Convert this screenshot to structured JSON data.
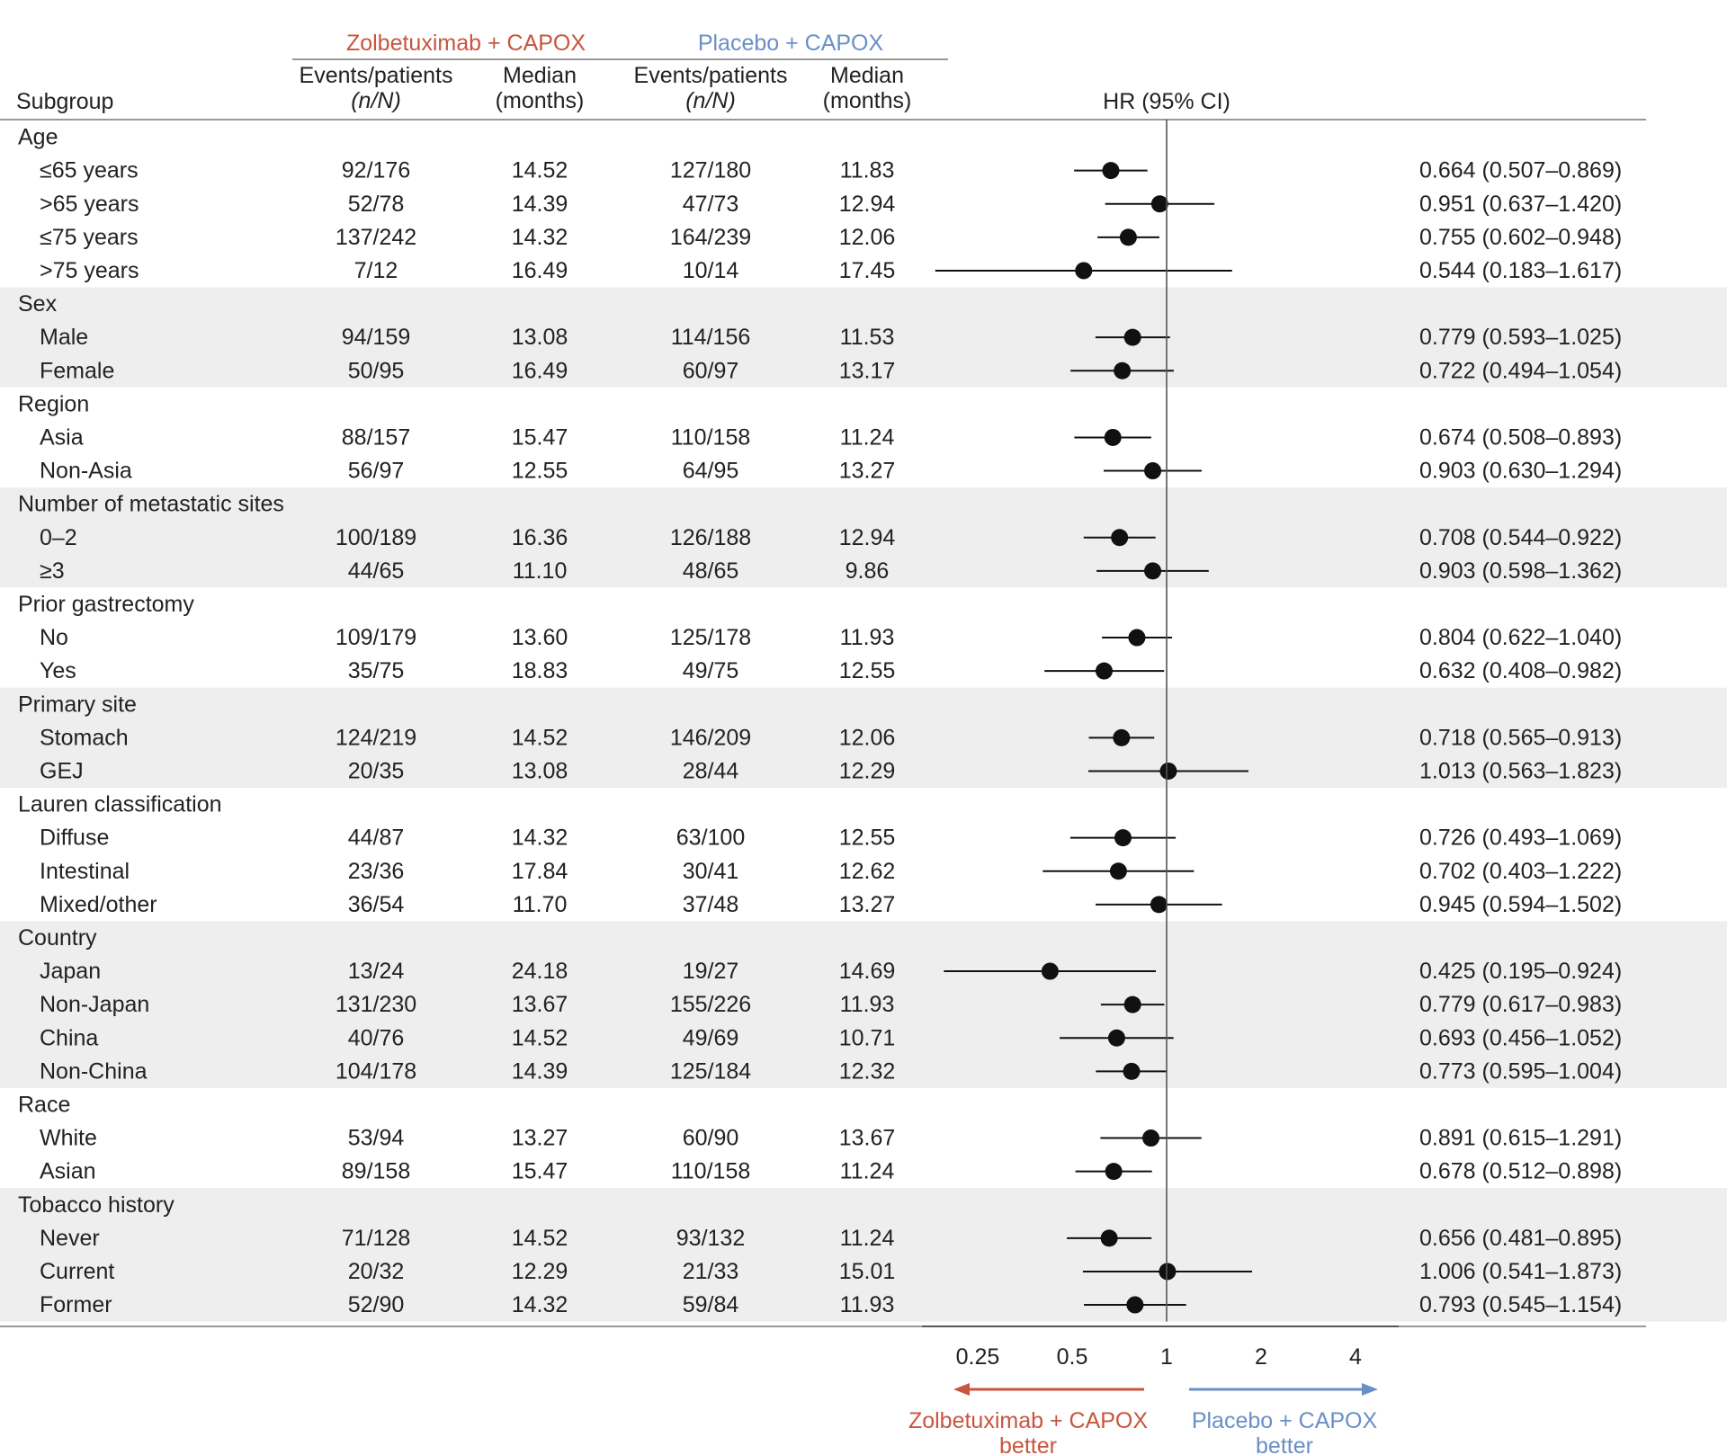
{
  "header": {
    "zolbe_group": "Zolbetuximab + CAPOX",
    "placebo_group": "Placebo + CAPOX",
    "subgroup_label": "Subgroup",
    "events_line1": "Events/patients",
    "events_line2": "(n/N)",
    "median_line1": "Median",
    "median_line2": "(months)",
    "hr_label": "HR (95% CI)"
  },
  "colors": {
    "zolbe": "#c8553d",
    "placebo": "#6a8fc7",
    "band": "#eeeeee",
    "ink": "#111111"
  },
  "chart_data": {
    "type": "forest",
    "scale": "log2",
    "x_ticks": [
      0.25,
      0.5,
      1,
      2,
      4
    ],
    "x_tick_labels": [
      "0.25",
      "0.5",
      "1",
      "2",
      "4"
    ],
    "reference_line": 1,
    "groups": [
      {
        "name": "Age",
        "rows": [
          {
            "label": "≤65 years",
            "ze": "92/176",
            "zm": "14.52",
            "pe": "127/180",
            "pm": "11.83",
            "hr": 0.664,
            "lo": 0.507,
            "hi": 0.869,
            "text": "0.664 (0.507–0.869)"
          },
          {
            "label": ">65 years",
            "ze": "52/78",
            "zm": "14.39",
            "pe": "47/73",
            "pm": "12.94",
            "hr": 0.951,
            "lo": 0.637,
            "hi": 1.42,
            "text": "0.951 (0.637–1.420)"
          },
          {
            "label": "≤75 years",
            "ze": "137/242",
            "zm": "14.32",
            "pe": "164/239",
            "pm": "12.06",
            "hr": 0.755,
            "lo": 0.602,
            "hi": 0.948,
            "text": "0.755 (0.602–0.948)"
          },
          {
            "label": ">75 years",
            "ze": "7/12",
            "zm": "16.49",
            "pe": "10/14",
            "pm": "17.45",
            "hr": 0.544,
            "lo": 0.183,
            "hi": 1.617,
            "text": "0.544 (0.183–1.617)"
          }
        ]
      },
      {
        "name": "Sex",
        "rows": [
          {
            "label": "Male",
            "ze": "94/159",
            "zm": "13.08",
            "pe": "114/156",
            "pm": "11.53",
            "hr": 0.779,
            "lo": 0.593,
            "hi": 1.025,
            "text": "0.779 (0.593–1.025)"
          },
          {
            "label": "Female",
            "ze": "50/95",
            "zm": "16.49",
            "pe": "60/97",
            "pm": "13.17",
            "hr": 0.722,
            "lo": 0.494,
            "hi": 1.054,
            "text": "0.722 (0.494–1.054)"
          }
        ]
      },
      {
        "name": "Region",
        "rows": [
          {
            "label": "Asia",
            "ze": "88/157",
            "zm": "15.47",
            "pe": "110/158",
            "pm": "11.24",
            "hr": 0.674,
            "lo": 0.508,
            "hi": 0.893,
            "text": "0.674 (0.508–0.893)"
          },
          {
            "label": "Non-Asia",
            "ze": "56/97",
            "zm": "12.55",
            "pe": "64/95",
            "pm": "13.27",
            "hr": 0.903,
            "lo": 0.63,
            "hi": 1.294,
            "text": "0.903 (0.630–1.294)"
          }
        ]
      },
      {
        "name": "Number of metastatic sites",
        "rows": [
          {
            "label": "0–2",
            "ze": "100/189",
            "zm": "16.36",
            "pe": "126/188",
            "pm": "12.94",
            "hr": 0.708,
            "lo": 0.544,
            "hi": 0.922,
            "text": "0.708 (0.544–0.922)"
          },
          {
            "label": "≥3",
            "ze": "44/65",
            "zm": "11.10",
            "pe": "48/65",
            "pm": "9.86",
            "hr": 0.903,
            "lo": 0.598,
            "hi": 1.362,
            "text": "0.903 (0.598–1.362)"
          }
        ]
      },
      {
        "name": "Prior gastrectomy",
        "rows": [
          {
            "label": "No",
            "ze": "109/179",
            "zm": "13.60",
            "pe": "125/178",
            "pm": "11.93",
            "hr": 0.804,
            "lo": 0.622,
            "hi": 1.04,
            "text": "0.804 (0.622–1.040)"
          },
          {
            "label": "Yes",
            "ze": "35/75",
            "zm": "18.83",
            "pe": "49/75",
            "pm": "12.55",
            "hr": 0.632,
            "lo": 0.408,
            "hi": 0.982,
            "text": "0.632 (0.408–0.982)"
          }
        ]
      },
      {
        "name": "Primary site",
        "rows": [
          {
            "label": "Stomach",
            "ze": "124/219",
            "zm": "14.52",
            "pe": "146/209",
            "pm": "12.06",
            "hr": 0.718,
            "lo": 0.565,
            "hi": 0.913,
            "text": "0.718 (0.565–0.913)"
          },
          {
            "label": "GEJ",
            "ze": "20/35",
            "zm": "13.08",
            "pe": "28/44",
            "pm": "12.29",
            "hr": 1.013,
            "lo": 0.563,
            "hi": 1.823,
            "text": "1.013 (0.563–1.823)"
          }
        ]
      },
      {
        "name": "Lauren classification",
        "rows": [
          {
            "label": "Diffuse",
            "ze": "44/87",
            "zm": "14.32",
            "pe": "63/100",
            "pm": "12.55",
            "hr": 0.726,
            "lo": 0.493,
            "hi": 1.069,
            "text": "0.726 (0.493–1.069)"
          },
          {
            "label": "Intestinal",
            "ze": "23/36",
            "zm": "17.84",
            "pe": "30/41",
            "pm": "12.62",
            "hr": 0.702,
            "lo": 0.403,
            "hi": 1.222,
            "text": "0.702 (0.403–1.222)"
          },
          {
            "label": "Mixed/other",
            "ze": "36/54",
            "zm": "11.70",
            "pe": "37/48",
            "pm": "13.27",
            "hr": 0.945,
            "lo": 0.594,
            "hi": 1.502,
            "text": "0.945 (0.594–1.502)"
          }
        ]
      },
      {
        "name": "Country",
        "rows": [
          {
            "label": "Japan",
            "ze": "13/24",
            "zm": "24.18",
            "pe": "19/27",
            "pm": "14.69",
            "hr": 0.425,
            "lo": 0.195,
            "hi": 0.924,
            "text": "0.425 (0.195–0.924)"
          },
          {
            "label": "Non-Japan",
            "ze": "131/230",
            "zm": "13.67",
            "pe": "155/226",
            "pm": "11.93",
            "hr": 0.779,
            "lo": 0.617,
            "hi": 0.983,
            "text": "0.779 (0.617–0.983)"
          },
          {
            "label": "China",
            "ze": "40/76",
            "zm": "14.52",
            "pe": "49/69",
            "pm": "10.71",
            "hr": 0.693,
            "lo": 0.456,
            "hi": 1.052,
            "text": "0.693 (0.456–1.052)"
          },
          {
            "label": "Non-China",
            "ze": "104/178",
            "zm": "14.39",
            "pe": "125/184",
            "pm": "12.32",
            "hr": 0.773,
            "lo": 0.595,
            "hi": 1.004,
            "text": "0.773 (0.595–1.004)"
          }
        ]
      },
      {
        "name": "Race",
        "rows": [
          {
            "label": "White",
            "ze": "53/94",
            "zm": "13.27",
            "pe": "60/90",
            "pm": "13.67",
            "hr": 0.891,
            "lo": 0.615,
            "hi": 1.291,
            "text": "0.891 (0.615–1.291)"
          },
          {
            "label": "Asian",
            "ze": "89/158",
            "zm": "15.47",
            "pe": "110/158",
            "pm": "11.24",
            "hr": 0.678,
            "lo": 0.512,
            "hi": 0.898,
            "text": "0.678 (0.512–0.898)"
          }
        ]
      },
      {
        "name": "Tobacco history",
        "rows": [
          {
            "label": "Never",
            "ze": "71/128",
            "zm": "14.52",
            "pe": "93/132",
            "pm": "11.24",
            "hr": 0.656,
            "lo": 0.481,
            "hi": 0.895,
            "text": "0.656 (0.481–0.895)"
          },
          {
            "label": "Current",
            "ze": "20/32",
            "zm": "12.29",
            "pe": "21/33",
            "pm": "15.01",
            "hr": 1.006,
            "lo": 0.541,
            "hi": 1.873,
            "text": "1.006 (0.541–1.873)"
          },
          {
            "label": "Former",
            "ze": "52/90",
            "zm": "14.32",
            "pe": "59/84",
            "pm": "11.93",
            "hr": 0.793,
            "lo": 0.545,
            "hi": 1.154,
            "text": "0.793 (0.545–1.154)"
          }
        ]
      }
    ],
    "footer": {
      "left_line1": "Zolbetuximab + CAPOX",
      "left_line2": "better",
      "right_line1": "Placebo + CAPOX",
      "right_line2": "better"
    }
  }
}
